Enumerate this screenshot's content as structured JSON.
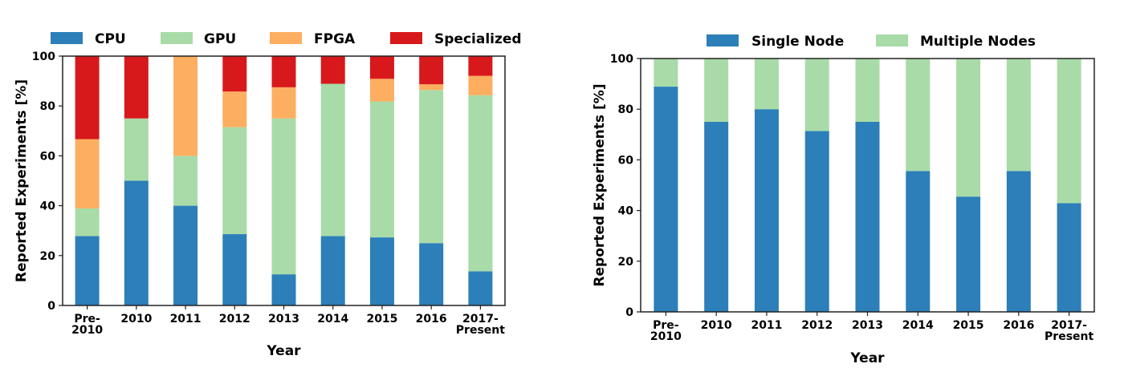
{
  "chart_data": [
    {
      "type": "bar",
      "stacked": true,
      "categories": [
        [
          "Pre-",
          "2010"
        ],
        [
          "2010"
        ],
        [
          "2011"
        ],
        [
          "2012"
        ],
        [
          "2013"
        ],
        [
          "2014"
        ],
        [
          "2015"
        ],
        [
          "2016"
        ],
        [
          "2017-",
          "Present"
        ]
      ],
      "series": [
        {
          "name": "CPU",
          "color": "#2c7fb8",
          "values": [
            27.8,
            50.0,
            40.0,
            28.6,
            12.5,
            27.8,
            27.3,
            25.0,
            13.7
          ]
        },
        {
          "name": "GPU",
          "color": "#a8dba8",
          "values": [
            11.1,
            25.0,
            20.0,
            42.9,
            62.5,
            61.1,
            54.5,
            61.4,
            70.6
          ]
        },
        {
          "name": "FPGA",
          "color": "#fdae61",
          "values": [
            27.8,
            0.0,
            40.0,
            14.3,
            12.5,
            0.0,
            9.1,
            2.3,
            7.8
          ]
        },
        {
          "name": "Specialized",
          "color": "#d7191c",
          "values": [
            33.3,
            25.0,
            0.0,
            14.2,
            12.5,
            11.1,
            9.1,
            11.3,
            7.9
          ]
        }
      ],
      "xlabel": "Year",
      "ylabel": "Reported Experiments [%]",
      "ylim": [
        0,
        100
      ],
      "yticks": [
        "0",
        "20",
        "40",
        "60",
        "80",
        "100"
      ],
      "legend": "top"
    },
    {
      "type": "bar",
      "stacked": true,
      "categories": [
        [
          "Pre-",
          "2010"
        ],
        [
          "2010"
        ],
        [
          "2011"
        ],
        [
          "2012"
        ],
        [
          "2013"
        ],
        [
          "2014"
        ],
        [
          "2015"
        ],
        [
          "2016"
        ],
        [
          "2017-",
          "Present"
        ]
      ],
      "series": [
        {
          "name": "Single Node",
          "color": "#2c7fb8",
          "values": [
            88.9,
            75.0,
            80.0,
            71.4,
            75.0,
            55.6,
            45.5,
            55.6,
            42.9
          ]
        },
        {
          "name": "Multiple Nodes",
          "color": "#a8dba8",
          "values": [
            11.1,
            25.0,
            20.0,
            28.6,
            25.0,
            44.4,
            54.5,
            44.4,
            57.1
          ]
        }
      ],
      "xlabel": "Year",
      "ylabel": "Reported Experiments [%]",
      "ylim": [
        0,
        100
      ],
      "yticks": [
        "0",
        "20",
        "40",
        "60",
        "80",
        "100"
      ],
      "legend": "top"
    }
  ]
}
